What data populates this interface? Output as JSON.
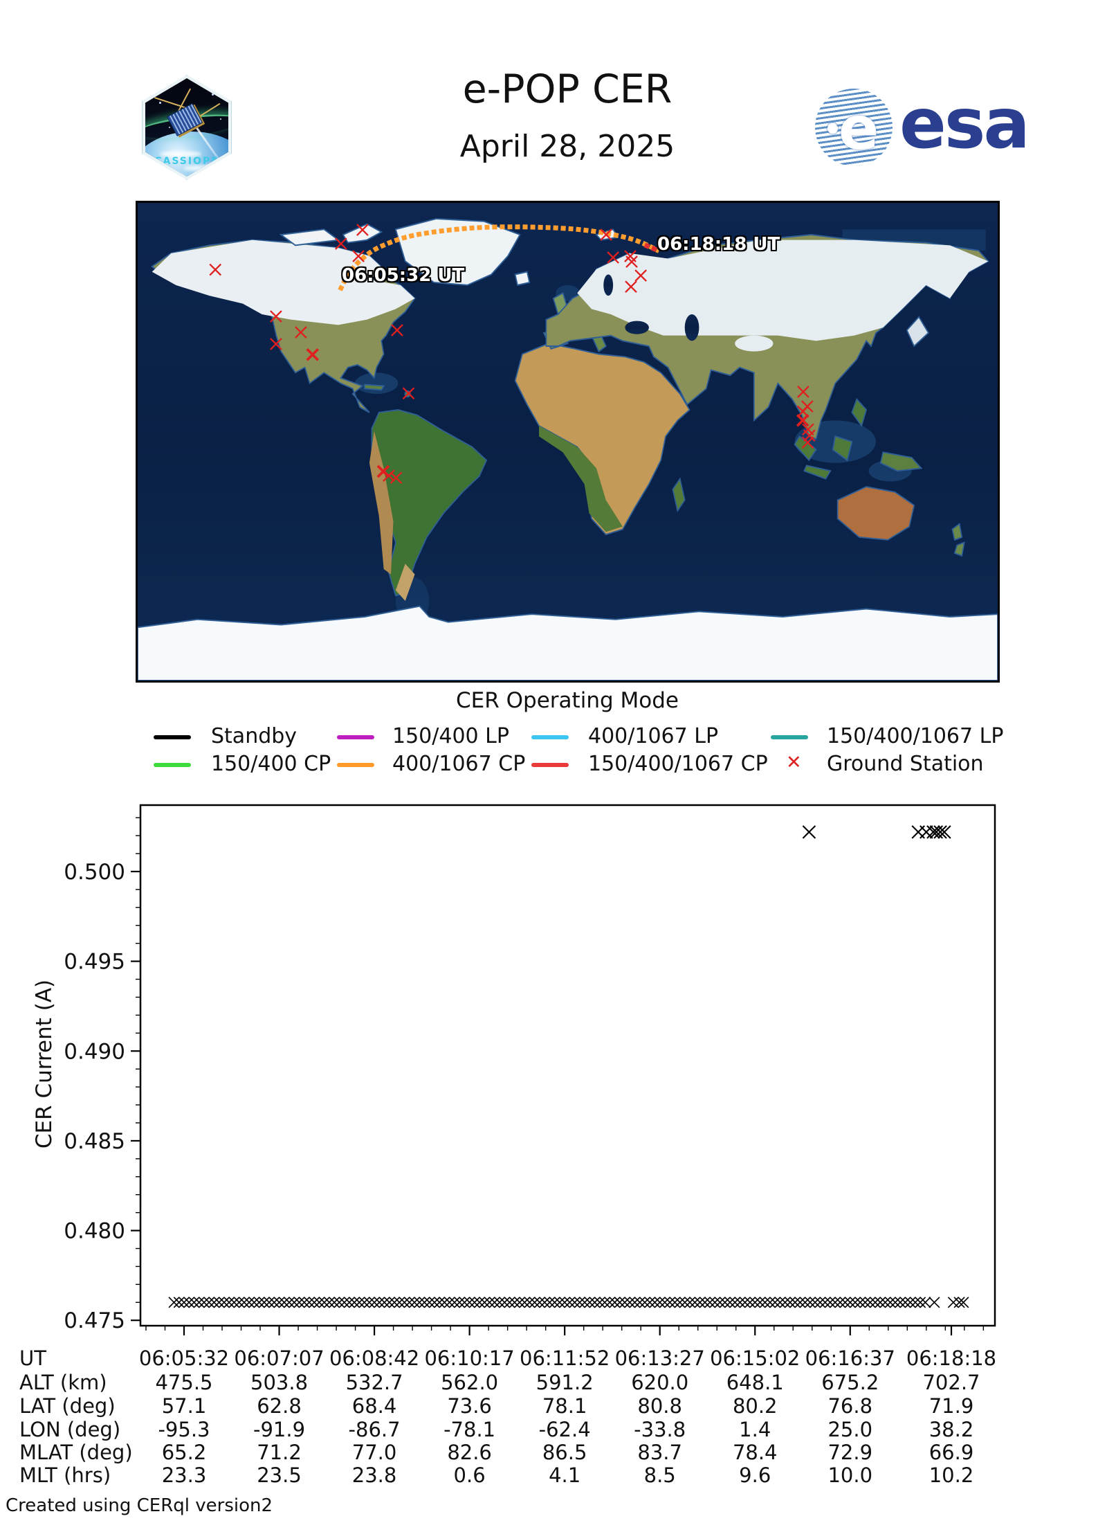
{
  "header": {
    "title": "e-POP CER",
    "date": "April 28, 2025",
    "esa_wordmark": "esa",
    "esa_blue": "#2a3f90",
    "patch_label": "CASSIOPE"
  },
  "map": {
    "start_label": "06:05:32 UT",
    "end_label": "06:18:18 UT",
    "lon_range": [
      -180,
      180
    ],
    "lat_range": [
      -90,
      90
    ],
    "station_color": "#e01f1f",
    "track_segments": [
      {
        "mode": "400/1067 CP",
        "color": "#FF9D2E"
      },
      {
        "mode": "150/400/1067 CP",
        "color": "#E53030"
      }
    ],
    "track_points": [
      {
        "lon": -95.3,
        "lat": 57.1
      },
      {
        "lon": -91.9,
        "lat": 62.8
      },
      {
        "lon": -86.7,
        "lat": 68.4
      },
      {
        "lon": -78.1,
        "lat": 73.6
      },
      {
        "lon": -62.4,
        "lat": 78.1
      },
      {
        "lon": -33.8,
        "lat": 80.8
      },
      {
        "lon": 1.4,
        "lat": 80.2
      },
      {
        "lon": 25.0,
        "lat": 76.8
      },
      {
        "lon": 38.2,
        "lat": 71.9
      }
    ],
    "ground_stations": [
      {
        "lon": -147.5,
        "lat": 64.8,
        "bold": false
      },
      {
        "lon": -94.9,
        "lat": 74.6,
        "bold": false
      },
      {
        "lon": -85.9,
        "lat": 79.8,
        "bold": false
      },
      {
        "lon": -87.6,
        "lat": 69.9,
        "bold": false
      },
      {
        "lon": -122.1,
        "lat": 47.2,
        "bold": false
      },
      {
        "lon": -122.1,
        "lat": 36.8,
        "bold": false
      },
      {
        "lon": -111.7,
        "lat": 41.2,
        "bold": false
      },
      {
        "lon": -106.8,
        "lat": 32.8,
        "bold": true
      },
      {
        "lon": -71.4,
        "lat": 42.0,
        "bold": false
      },
      {
        "lon": -66.6,
        "lat": 18.2,
        "bold": false
      },
      {
        "lon": -77.2,
        "lat": -11.2,
        "bold": true
      },
      {
        "lon": -74.9,
        "lat": -12.8,
        "bold": false
      },
      {
        "lon": -71.8,
        "lat": -13.6,
        "bold": false
      },
      {
        "lon": 16.1,
        "lat": 78.0,
        "bold": false
      },
      {
        "lon": 19.0,
        "lat": 69.4,
        "bold": false
      },
      {
        "lon": 26.2,
        "lat": 69.9,
        "bold": false
      },
      {
        "lon": 26.8,
        "lat": 67.8,
        "bold": false
      },
      {
        "lon": 30.6,
        "lat": 62.6,
        "bold": false
      },
      {
        "lon": 26.5,
        "lat": 58.4,
        "bold": false
      },
      {
        "lon": 98.6,
        "lat": 18.8,
        "bold": false
      },
      {
        "lon": 100.3,
        "lat": 13.3,
        "bold": false
      },
      {
        "lon": 98.5,
        "lat": 11.4,
        "bold": false
      },
      {
        "lon": 98.4,
        "lat": 8.0,
        "bold": true
      },
      {
        "lon": 100.6,
        "lat": 4.6,
        "bold": false
      },
      {
        "lon": 101.2,
        "lat": 2.3,
        "bold": false
      },
      {
        "lon": 100.5,
        "lat": -0.3,
        "bold": false
      }
    ]
  },
  "legend": {
    "title": "CER Operating Mode",
    "rows": [
      [
        {
          "label": "Standby",
          "color": "#000000",
          "type": "line"
        },
        {
          "label": "150/400 LP",
          "color": "#bf1fbf",
          "type": "line"
        },
        {
          "label": "400/1067 LP",
          "color": "#3ec6f2",
          "type": "line"
        },
        {
          "label": "150/400/1067 LP",
          "color": "#27a59e",
          "type": "line"
        }
      ],
      [
        {
          "label": "150/400 CP",
          "color": "#3bdc3b",
          "type": "line"
        },
        {
          "label": "400/1067 CP",
          "color": "#ff9a2a",
          "type": "line"
        },
        {
          "label": "150/400/1067 CP",
          "color": "#e93a3a",
          "type": "line"
        },
        {
          "label": "Ground Station",
          "color": "#dd2222",
          "type": "x-marker"
        }
      ]
    ]
  },
  "chart_data": {
    "type": "scatter",
    "title": "",
    "xlabel": "",
    "ylabel": "CER Current (A)",
    "marker": "x",
    "marker_color": "#000000",
    "grid": false,
    "ylim": [
      0.4747,
      0.5037
    ],
    "yticks": [
      0.475,
      0.48,
      0.485,
      0.49,
      0.495,
      0.5
    ],
    "ytick_labels": [
      "0.475",
      "0.480",
      "0.485",
      "0.490",
      "0.495",
      "0.500"
    ],
    "xtick_labels": [
      "06:05:32",
      "06:07:07",
      "06:08:42",
      "06:10:17",
      "06:11:52",
      "06:13:27",
      "06:15:02",
      "06:16:37",
      "06:18:18"
    ],
    "xtick_seconds": [
      0,
      95,
      190,
      285,
      380,
      475,
      570,
      665,
      766
    ],
    "xlim_seconds": [
      -43,
      809
    ],
    "series": [
      {
        "name": "standby-current",
        "value_A": 0.476,
        "t_start_s": -10,
        "t_end_s": 740,
        "interval_s": 5,
        "extra_t_s": [
          749,
          768,
          774,
          778
        ]
      },
      {
        "name": "elevated-current",
        "value_A": 0.5022,
        "t_s": [
          624,
          733,
          741,
          748,
          751,
          755,
          759
        ]
      }
    ]
  },
  "table": {
    "rows": [
      {
        "label": "UT",
        "values": [
          "06:05:32",
          "06:07:07",
          "06:08:42",
          "06:10:17",
          "06:11:52",
          "06:13:27",
          "06:15:02",
          "06:16:37",
          "06:18:18"
        ]
      },
      {
        "label": "ALT (km)",
        "values": [
          "475.5",
          "503.8",
          "532.7",
          "562.0",
          "591.2",
          "620.0",
          "648.1",
          "675.2",
          "702.7"
        ]
      },
      {
        "label": "LAT (deg)",
        "values": [
          "57.1",
          "62.8",
          "68.4",
          "73.6",
          "78.1",
          "80.8",
          "80.2",
          "76.8",
          "71.9"
        ]
      },
      {
        "label": "LON (deg)",
        "values": [
          "-95.3",
          "-91.9",
          "-86.7",
          "-78.1",
          "-62.4",
          "-33.8",
          "1.4",
          "25.0",
          "38.2"
        ]
      },
      {
        "label": "MLAT (deg)",
        "values": [
          "65.2",
          "71.2",
          "77.0",
          "82.6",
          "86.5",
          "83.7",
          "78.4",
          "72.9",
          "66.9"
        ]
      },
      {
        "label": "MLT (hrs)",
        "values": [
          "23.3",
          "23.5",
          "23.8",
          "0.6",
          "4.1",
          "8.5",
          "9.6",
          "10.0",
          "10.2"
        ]
      }
    ]
  },
  "footer": "Created using CERql version2"
}
